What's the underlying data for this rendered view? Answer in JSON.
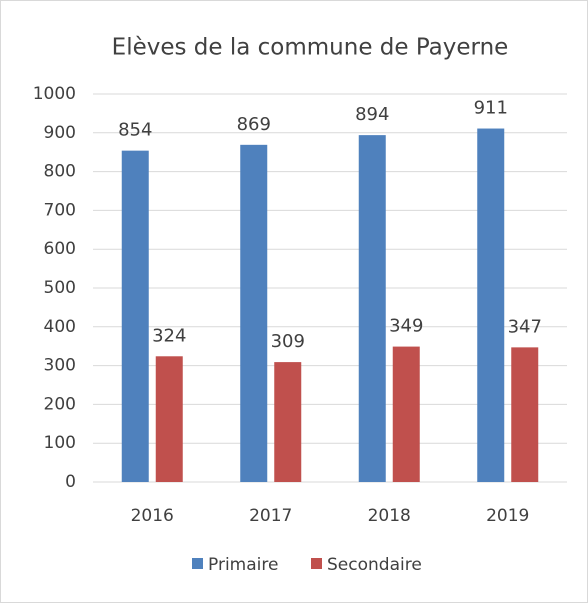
{
  "chart_data": {
    "type": "bar",
    "title": "Elèves de la commune de Payerne",
    "categories": [
      "2016",
      "2017",
      "2018",
      "2019"
    ],
    "series": [
      {
        "name": "Primaire",
        "color": "#4f81bd",
        "values": [
          854,
          869,
          894,
          911
        ]
      },
      {
        "name": "Secondaire",
        "color": "#c0504d",
        "values": [
          324,
          309,
          349,
          347
        ]
      }
    ],
    "ylim": [
      0,
      1000
    ],
    "yticks": [
      0,
      100,
      200,
      300,
      400,
      500,
      600,
      700,
      800,
      900,
      1000
    ],
    "grid": true,
    "legend": "bottom"
  }
}
